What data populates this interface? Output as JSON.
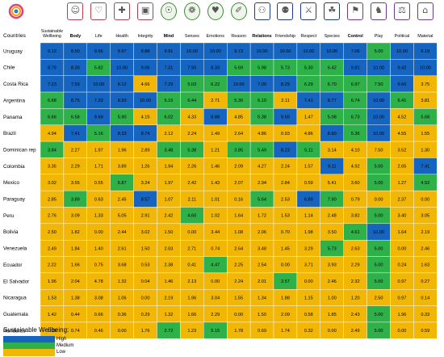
{
  "colors": {
    "High": "#1565c0",
    "Medium": "#2fb14a",
    "Low": "#f2b705"
  },
  "icons": [
    {
      "name": "sustainable-wellbeing-logo-icon",
      "style": "logo"
    },
    {
      "name": "body-icon",
      "style": "red"
    },
    {
      "name": "life-icon",
      "style": "red"
    },
    {
      "name": "health-icon",
      "style": "red"
    },
    {
      "name": "integrity-icon",
      "style": "red"
    },
    {
      "name": "mind-icon",
      "style": "green"
    },
    {
      "name": "senses-icon",
      "style": "green"
    },
    {
      "name": "emotions-icon",
      "style": "green"
    },
    {
      "name": "reason-icon",
      "style": "green"
    },
    {
      "name": "relations-icon",
      "style": "blue"
    },
    {
      "name": "friendship-icon",
      "style": "blue"
    },
    {
      "name": "respect-icon",
      "style": "blue"
    },
    {
      "name": "species-icon",
      "style": "blue"
    },
    {
      "name": "control-icon",
      "style": "violet"
    },
    {
      "name": "play-icon",
      "style": "violet"
    },
    {
      "name": "political-icon",
      "style": "violet"
    },
    {
      "name": "material-icon",
      "style": "violet"
    }
  ],
  "chart_data": {
    "type": "heatmap",
    "row_header": "Countries",
    "columns": [
      "Sustainable Wellbeing",
      "Body",
      "Life",
      "Health",
      "Integrity",
      "Mind",
      "Senses",
      "Emotions",
      "Reason",
      "Relations",
      "Friendship",
      "Respect",
      "Species",
      "Control",
      "Play",
      "Political",
      "Material"
    ],
    "bold_columns": [
      "Body",
      "Mind",
      "Relations",
      "Control"
    ],
    "rows": [
      "Uruguay",
      "Chile",
      "Costa Rica",
      "Argentina",
      "Panama",
      "Brazil",
      "Dominican rep",
      "Colombia",
      "Mexico",
      "Paraguay",
      "Peru",
      "Bolivia",
      "Venezuela",
      "Ecuador",
      "El Salvador",
      "Nicaragua",
      "Guatemala",
      "Honduras"
    ],
    "values": [
      [
        "9.12",
        "8.50",
        "9.66",
        "9.97",
        "8.88",
        "9.91",
        "10.00",
        "10.00",
        "9.73",
        "10.00",
        "10.00",
        "10.00",
        "10.00",
        "7.06",
        "5.00",
        "10.00",
        "6.18"
      ],
      [
        "8.79",
        "8.30",
        "5.82",
        "10.00",
        "9.06",
        "7.31",
        "7.90",
        "8.33",
        "5.69",
        "5.98",
        "5.73",
        "5.30",
        "6.42",
        "9.81",
        "10.00",
        "9.42",
        "10.00"
      ],
      [
        "7.23",
        "7.59",
        "10.00",
        "8.12",
        "4.66",
        "7.29",
        "5.03",
        "6.22",
        "10.00",
        "7.09",
        "8.29",
        "6.29",
        "6.70",
        "6.97",
        "7.50",
        "9.66",
        "3.75"
      ],
      [
        "6.68",
        "8.75",
        "7.33",
        "8.93",
        "10.00",
        "5.15",
        "6.44",
        "2.71",
        "5.30",
        "6.10",
        "2.11",
        "7.41",
        "8.77",
        "6.74",
        "10.00",
        "6.41",
        "3.81"
      ],
      [
        "6.66",
        "6.58",
        "9.69",
        "5.90",
        "4.15",
        "6.02",
        "4.33",
        "8.88",
        "4.85",
        "5.38",
        "9.59",
        "1.47",
        "5.08",
        "6.73",
        "10.00",
        "4.52",
        "5.68"
      ],
      [
        "4.94",
        "7.41",
        "5.16",
        "8.33",
        "8.74",
        "2.12",
        "2.24",
        "1.49",
        "2.64",
        "4.86",
        "0.93",
        "4.86",
        "8.80",
        "5.36",
        "10.00",
        "4.55",
        "1.55"
      ],
      [
        "3.84",
        "2.27",
        "1.97",
        "1.96",
        "2.89",
        "3.48",
        "5.38",
        "1.21",
        "3.85",
        "5.49",
        "8.23",
        "5.11",
        "3.14",
        "4.10",
        "7.50",
        "3.52",
        "1.30"
      ],
      [
        "3.35",
        "2.29",
        "1.71",
        "3.89",
        "1.26",
        "1.94",
        "2.26",
        "1.46",
        "2.09",
        "4.27",
        "2.24",
        "1.57",
        "9.11",
        "4.92",
        "5.00",
        "2.65",
        "7.41"
      ],
      [
        "3.02",
        "3.55",
        "0.55",
        "6.87",
        "3.24",
        "1.97",
        "2.42",
        "1.43",
        "2.07",
        "2.94",
        "2.84",
        "0.59",
        "5.41",
        "3.60",
        "5.00",
        "1.27",
        "4.52"
      ],
      [
        "2.85",
        "3.89",
        "0.63",
        "2.45",
        "8.57",
        "1.07",
        "2.11",
        "1.01",
        "0.16",
        "5.64",
        "2.53",
        "6.89",
        "7.90",
        "0.79",
        "0.00",
        "2.37",
        "0.00"
      ],
      [
        "2.76",
        "3.09",
        "1.33",
        "5.05",
        "2.91",
        "2.42",
        "4.60",
        "1.02",
        "1.64",
        "1.72",
        "1.53",
        "1.14",
        "2.48",
        "3.82",
        "5.00",
        "3.40",
        "3.05"
      ],
      [
        "2.50",
        "1.82",
        "0.00",
        "2.44",
        "3.02",
        "1.50",
        "0.00",
        "3.44",
        "1.08",
        "2.06",
        "0.70",
        "1.98",
        "3.50",
        "4.61",
        "10.00",
        "1.64",
        "2.19"
      ],
      [
        "2.49",
        "1.84",
        "1.40",
        "2.61",
        "1.50",
        "2.03",
        "2.71",
        "0.74",
        "2.64",
        "3.48",
        "1.45",
        "3.29",
        "5.73",
        "2.63",
        "5.00",
        "0.00",
        "2.46"
      ],
      [
        "2.22",
        "1.66",
        "0.75",
        "3.68",
        "0.53",
        "2.38",
        "0.41",
        "4.47",
        "2.25",
        "2.54",
        "0.00",
        "3.71",
        "3.93",
        "2.29",
        "5.00",
        "0.24",
        "1.63"
      ],
      [
        "1.96",
        "2.04",
        "4.78",
        "1.32",
        "0.04",
        "1.46",
        "2.13",
        "0.00",
        "2.24",
        "2.01",
        "3.57",
        "0.00",
        "2.46",
        "2.32",
        "5.00",
        "0.97",
        "0.27"
      ],
      [
        "1.53",
        "1.38",
        "3.08",
        "1.06",
        "0.00",
        "2.19",
        "1.96",
        "3.04",
        "1.55",
        "1.34",
        "1.88",
        "1.15",
        "1.00",
        "1.20",
        "2.50",
        "0.97",
        "0.14"
      ],
      [
        "1.42",
        "0.44",
        "0.66",
        "0.36",
        "0.29",
        "1.32",
        "1.66",
        "2.29",
        "0.00",
        "1.50",
        "2.09",
        "0.58",
        "1.85",
        "2.43",
        "5.00",
        "1.96",
        "0.33"
      ],
      [
        "1.03",
        "0.74",
        "0.46",
        "0.00",
        "1.76",
        "2.72",
        "1.23",
        "5.15",
        "1.78",
        "0.69",
        "1.74",
        "0.32",
        "0.00",
        "2.49",
        "5.00",
        "0.00",
        "0.59"
      ]
    ],
    "levels": [
      [
        "H",
        "H",
        "H",
        "H",
        "H",
        "H",
        "H",
        "H",
        "H",
        "H",
        "H",
        "H",
        "H",
        "H",
        "M",
        "H",
        "H"
      ],
      [
        "H",
        "H",
        "M",
        "H",
        "H",
        "H",
        "H",
        "H",
        "M",
        "M",
        "M",
        "M",
        "M",
        "H",
        "H",
        "H",
        "H"
      ],
      [
        "H",
        "H",
        "H",
        "H",
        "L",
        "H",
        "M",
        "M",
        "H",
        "H",
        "H",
        "M",
        "M",
        "M",
        "M",
        "H",
        "L"
      ],
      [
        "M",
        "H",
        "H",
        "H",
        "H",
        "M",
        "M",
        "L",
        "M",
        "M",
        "L",
        "H",
        "H",
        "M",
        "H",
        "M",
        "L"
      ],
      [
        "M",
        "M",
        "H",
        "M",
        "L",
        "M",
        "L",
        "H",
        "L",
        "M",
        "H",
        "L",
        "M",
        "M",
        "H",
        "L",
        "M"
      ],
      [
        "L",
        "H",
        "M",
        "H",
        "H",
        "L",
        "L",
        "L",
        "L",
        "L",
        "L",
        "L",
        "H",
        "M",
        "H",
        "L",
        "L"
      ],
      [
        "M",
        "L",
        "L",
        "L",
        "L",
        "M",
        "M",
        "L",
        "M",
        "M",
        "H",
        "M",
        "L",
        "L",
        "L",
        "L",
        "L"
      ],
      [
        "L",
        "L",
        "L",
        "L",
        "L",
        "L",
        "L",
        "L",
        "L",
        "L",
        "L",
        "L",
        "H",
        "L",
        "M",
        "L",
        "H"
      ],
      [
        "L",
        "L",
        "L",
        "M",
        "L",
        "L",
        "L",
        "L",
        "L",
        "L",
        "L",
        "L",
        "L",
        "L",
        "M",
        "L",
        "M"
      ],
      [
        "L",
        "M",
        "L",
        "L",
        "H",
        "L",
        "L",
        "L",
        "L",
        "M",
        "L",
        "H",
        "M",
        "L",
        "L",
        "L",
        "L"
      ],
      [
        "L",
        "L",
        "L",
        "L",
        "L",
        "L",
        "M",
        "L",
        "L",
        "L",
        "L",
        "L",
        "L",
        "L",
        "M",
        "L",
        "L"
      ],
      [
        "L",
        "L",
        "L",
        "L",
        "L",
        "L",
        "L",
        "L",
        "L",
        "L",
        "L",
        "L",
        "L",
        "M",
        "H",
        "L",
        "L"
      ],
      [
        "L",
        "L",
        "L",
        "L",
        "L",
        "L",
        "L",
        "L",
        "L",
        "L",
        "L",
        "L",
        "M",
        "L",
        "M",
        "L",
        "L"
      ],
      [
        "L",
        "L",
        "L",
        "L",
        "L",
        "L",
        "L",
        "M",
        "L",
        "L",
        "L",
        "L",
        "L",
        "L",
        "M",
        "L",
        "L"
      ],
      [
        "L",
        "L",
        "L",
        "L",
        "L",
        "L",
        "L",
        "L",
        "L",
        "L",
        "M",
        "L",
        "L",
        "L",
        "M",
        "L",
        "L"
      ],
      [
        "L",
        "L",
        "L",
        "L",
        "L",
        "L",
        "L",
        "L",
        "L",
        "L",
        "L",
        "L",
        "L",
        "L",
        "L",
        "L",
        "L"
      ],
      [
        "L",
        "L",
        "L",
        "L",
        "L",
        "L",
        "L",
        "L",
        "L",
        "L",
        "L",
        "L",
        "L",
        "L",
        "M",
        "L",
        "L"
      ],
      [
        "L",
        "L",
        "L",
        "L",
        "L",
        "M",
        "L",
        "M",
        "L",
        "L",
        "L",
        "L",
        "L",
        "L",
        "M",
        "L",
        "L"
      ]
    ],
    "legend": {
      "title": "Sustainable Wellbeing:",
      "items": [
        {
          "level": "High",
          "label": "High"
        },
        {
          "level": "Medium",
          "label": "Medium"
        },
        {
          "level": "Low",
          "label": "Low"
        }
      ]
    }
  }
}
